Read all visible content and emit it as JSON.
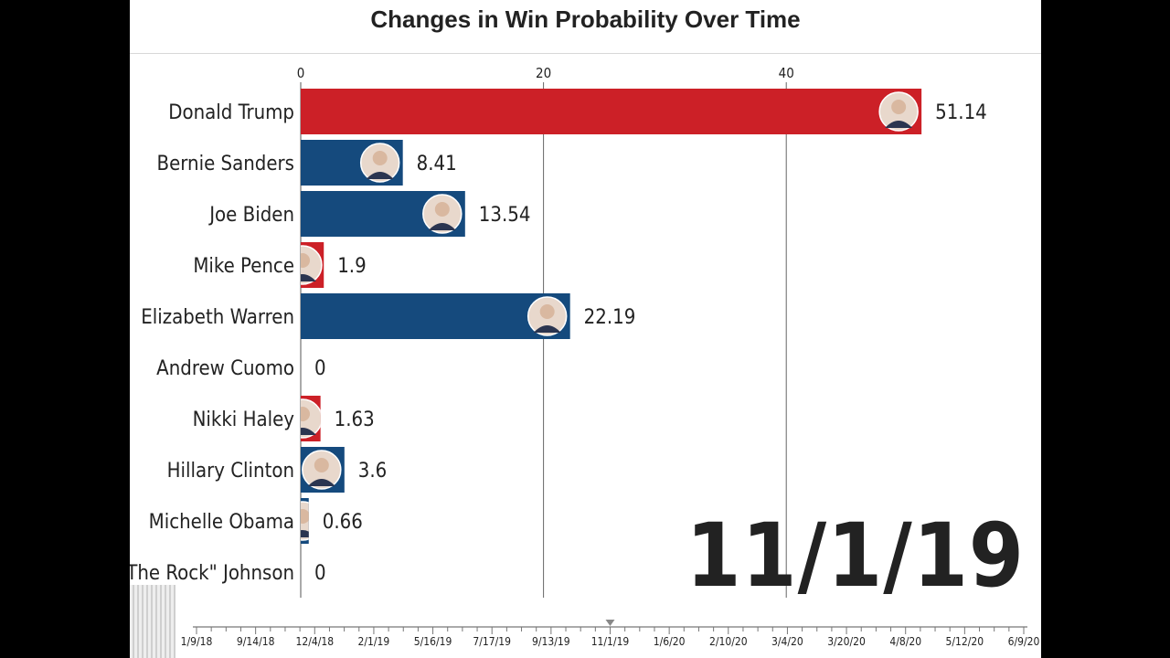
{
  "chart_data": {
    "type": "bar",
    "orientation": "horizontal",
    "title": "Changes in Win Probability Over Time",
    "xlim": [
      0,
      50
    ],
    "x_ticks": [
      0,
      20,
      40
    ],
    "categories": [
      "Donald Trump",
      "Bernie Sanders",
      "Joe Biden",
      "Mike Pence",
      "Elizabeth Warren",
      "Andrew Cuomo",
      "Nikki Haley",
      "Hillary Clinton",
      "Michelle Obama",
      "Dwayne \"The Rock\" Johnson"
    ],
    "values": [
      51.14,
      8.41,
      13.54,
      1.9,
      22.19,
      0,
      1.63,
      3.6,
      0.66,
      0
    ],
    "value_labels": [
      "51.14",
      "8.41",
      "13.54",
      "1.9",
      "22.19",
      "0",
      "1.63",
      "3.6",
      "0.66",
      "0"
    ],
    "party": [
      "R",
      "D",
      "D",
      "R",
      "D",
      "D",
      "R",
      "D",
      "D",
      "I"
    ],
    "colors": {
      "R": "#cc2027",
      "D": "#154a7d",
      "I": "#154a7d"
    },
    "current_date": "11/1/19",
    "timeline_ticks": [
      "1/9/18",
      "9/14/18",
      "12/4/18",
      "2/1/19",
      "5/16/19",
      "7/17/19",
      "9/13/19",
      "11/1/19",
      "1/6/20",
      "2/10/20",
      "3/4/20",
      "3/20/20",
      "4/8/20",
      "5/12/20",
      "6/9/20"
    ],
    "timeline_current": "11/1/19",
    "grid": true
  }
}
